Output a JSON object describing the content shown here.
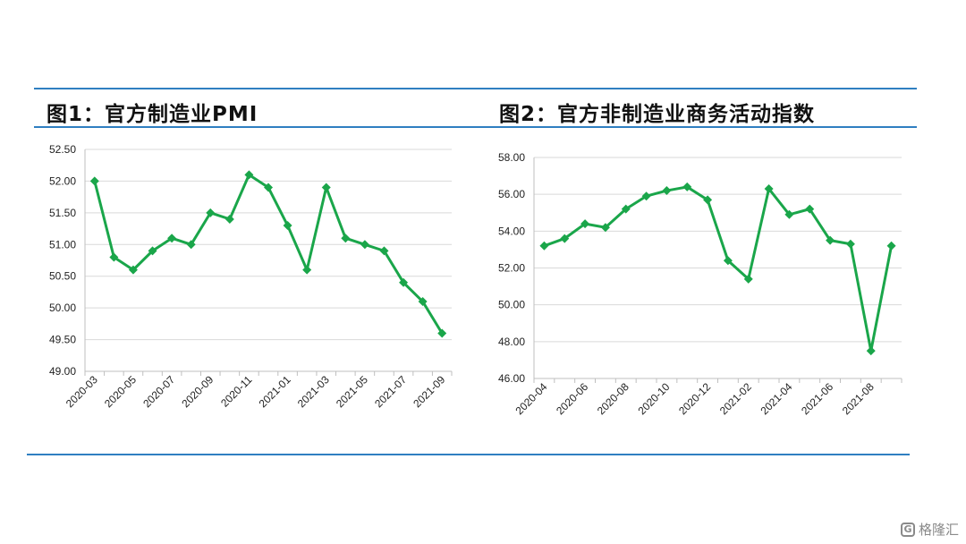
{
  "panels": [
    {
      "title": "图1：官方制造业PMI"
    },
    {
      "title": "图2：官方非制造业商务活动指数"
    }
  ],
  "colors": {
    "rule": "#2f7fc1",
    "series": "#1aa64a",
    "axis": "#bfbfbf"
  },
  "watermark": {
    "icon": "G",
    "text": "格隆汇"
  },
  "chart_data": [
    {
      "type": "line",
      "title": "图1：官方制造业PMI",
      "x": [
        "2020-03",
        "2020-04",
        "2020-05",
        "2020-06",
        "2020-07",
        "2020-08",
        "2020-09",
        "2020-10",
        "2020-11",
        "2020-12",
        "2021-01",
        "2021-02",
        "2021-03",
        "2021-04",
        "2021-05",
        "2021-06",
        "2021-07",
        "2021-08",
        "2021-09"
      ],
      "x_tick_labels": [
        "2020-03",
        "2020-05",
        "2020-07",
        "2020-09",
        "2020-11",
        "2021-01",
        "2021-03",
        "2021-05",
        "2021-07",
        "2021-09"
      ],
      "values": [
        52.0,
        50.8,
        50.6,
        50.9,
        51.1,
        51.0,
        51.5,
        51.4,
        52.1,
        51.9,
        51.3,
        50.6,
        51.9,
        51.1,
        51.0,
        50.9,
        50.4,
        50.1,
        49.6
      ],
      "y_tick_labels": [
        "49.00",
        "49.50",
        "50.00",
        "50.50",
        "51.00",
        "51.50",
        "52.00",
        "52.50"
      ],
      "ylim": [
        49.0,
        52.5
      ],
      "grid": "horizontal",
      "marker": "diamond"
    },
    {
      "type": "line",
      "title": "图2：官方非制造业商务活动指数",
      "x": [
        "2020-04",
        "2020-05",
        "2020-06",
        "2020-07",
        "2020-08",
        "2020-09",
        "2020-10",
        "2020-11",
        "2020-12",
        "2021-01",
        "2021-02",
        "2021-03",
        "2021-04",
        "2021-05",
        "2021-06",
        "2021-07",
        "2021-08",
        "2021-09"
      ],
      "x_tick_labels": [
        "2020-04",
        "2020-06",
        "2020-08",
        "2020-10",
        "2020-12",
        "2021-02",
        "2021-04",
        "2021-06",
        "2021-08"
      ],
      "values": [
        53.2,
        53.6,
        54.4,
        54.2,
        55.2,
        55.9,
        56.2,
        56.4,
        55.7,
        52.4,
        51.4,
        56.3,
        54.9,
        55.2,
        53.5,
        53.3,
        47.5,
        53.2
      ],
      "y_tick_labels": [
        "46.00",
        "48.00",
        "50.00",
        "52.00",
        "54.00",
        "56.00",
        "58.00"
      ],
      "ylim": [
        46.0,
        58.0
      ],
      "grid": "horizontal",
      "marker": "diamond"
    }
  ]
}
